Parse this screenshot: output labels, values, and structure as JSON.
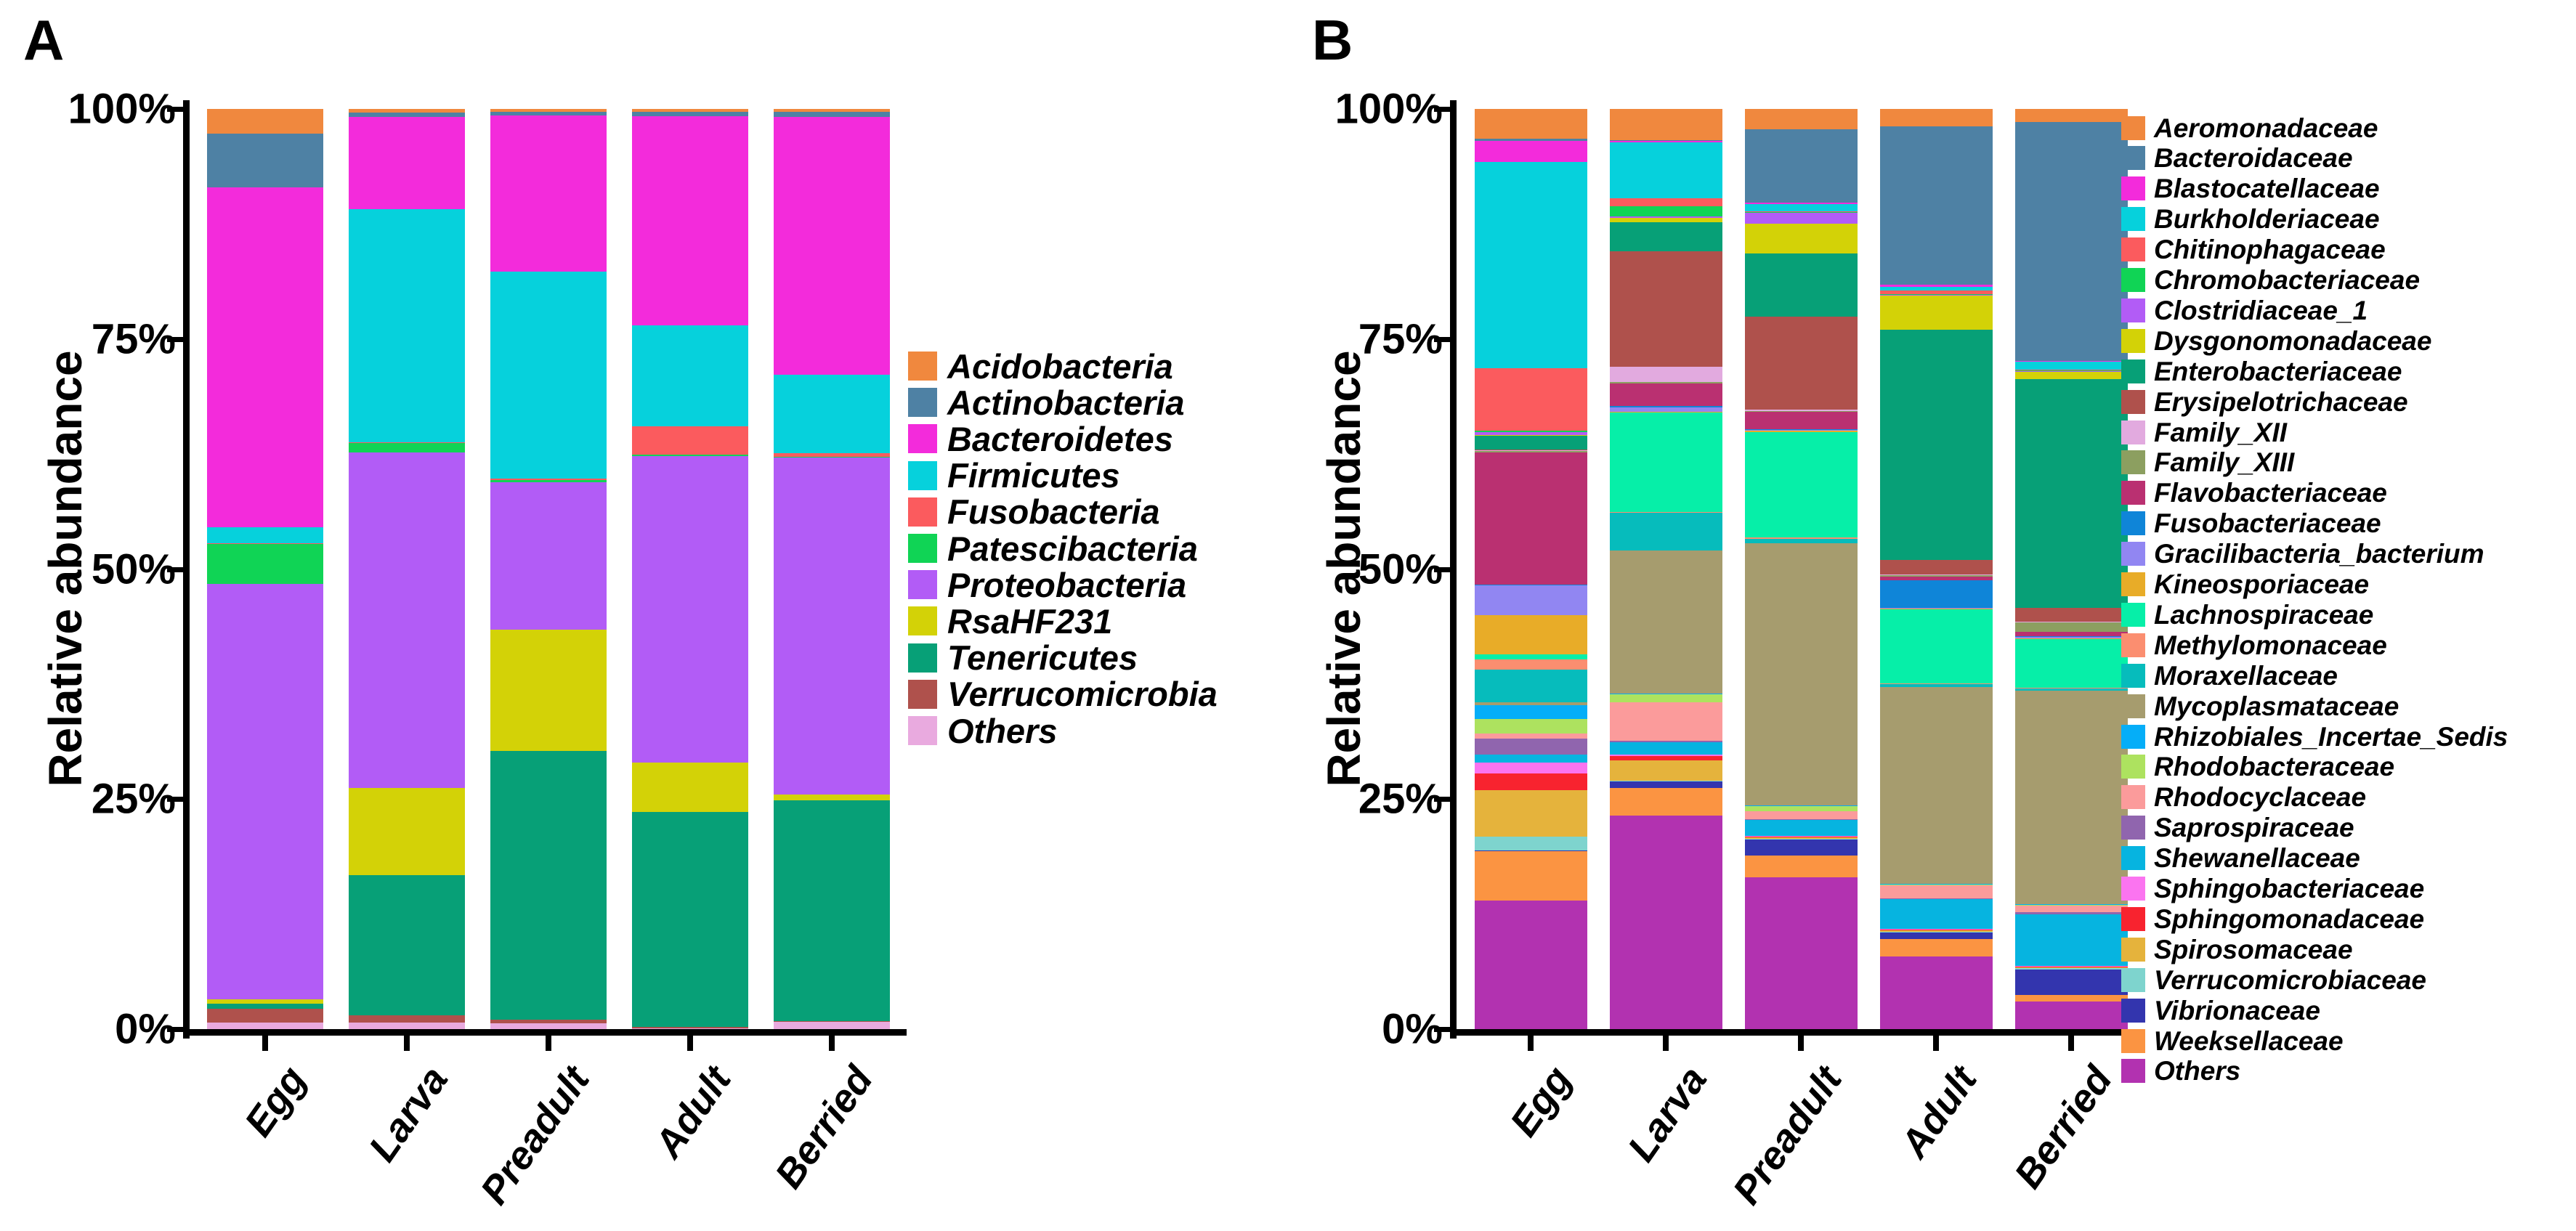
{
  "figure": {
    "panel_a_label": "A",
    "panel_b_label": "B",
    "y_axis_label": "Relative abundance"
  },
  "chart_data": [
    {
      "type": "bar",
      "subtype": "stacked-percent",
      "panel": "A",
      "title": "",
      "xlabel": "",
      "ylabel": "Relative abundance",
      "ylim": [
        0,
        100
      ],
      "yticks": [
        "100%",
        "75%",
        "50%",
        "25%",
        "0%"
      ],
      "categories": [
        "Egg",
        "Larva",
        "Preadult",
        "Adult",
        "Berried"
      ],
      "legend_position": "right",
      "series": [
        {
          "name": "Acidobacteria",
          "color": "#F0883E",
          "values": [
            2.7,
            0.4,
            0.3,
            0.3,
            0.3
          ]
        },
        {
          "name": "Actinobacteria",
          "color": "#4E81A4",
          "values": [
            5.8,
            0.5,
            0.4,
            0.5,
            0.6
          ]
        },
        {
          "name": "Bacteroidetes",
          "color": "#F32BDB",
          "values": [
            37.0,
            10.0,
            17.0,
            22.7,
            28.0
          ]
        },
        {
          "name": "Firmicutes",
          "color": "#06D1DC",
          "values": [
            1.7,
            25.3,
            22.5,
            11.0,
            8.5
          ]
        },
        {
          "name": "Fusobacteria",
          "color": "#FB5B5E",
          "values": [
            0.1,
            0.1,
            0.1,
            3.1,
            0.4
          ]
        },
        {
          "name": "Patescibacteria",
          "color": "#10D455",
          "values": [
            4.3,
            1.0,
            0.3,
            0.1,
            0.1
          ]
        },
        {
          "name": "Proteobacteria",
          "color": "#B25CF6",
          "values": [
            45.2,
            36.5,
            16.0,
            33.3,
            36.6
          ]
        },
        {
          "name": "RsaHF231",
          "color": "#D3D207",
          "values": [
            0.4,
            9.5,
            13.2,
            5.4,
            0.6
          ]
        },
        {
          "name": "Tenericutes",
          "color": "#07A077",
          "values": [
            0.6,
            15.2,
            29.2,
            23.4,
            24.0
          ]
        },
        {
          "name": "Verrucomicrobia",
          "color": "#AF514C",
          "values": [
            1.5,
            0.8,
            0.4,
            0.1,
            0.1
          ]
        },
        {
          "name": "Others",
          "color": "#E9AADF",
          "values": [
            0.7,
            0.7,
            0.6,
            0.1,
            0.8
          ]
        }
      ]
    },
    {
      "type": "bar",
      "subtype": "stacked-percent",
      "panel": "B",
      "title": "",
      "xlabel": "",
      "ylabel": "Relative abundance",
      "ylim": [
        0,
        100
      ],
      "yticks": [
        "100%",
        "75%",
        "50%",
        "25%",
        "0%"
      ],
      "categories": [
        "Egg",
        "Larva",
        "Preadult",
        "Adult",
        "Berried"
      ],
      "legend_position": "right",
      "series": [
        {
          "name": "Aeromonadaceae",
          "color": "#F0883E",
          "values": [
            3.2,
            3.4,
            2.2,
            1.9,
            1.4
          ]
        },
        {
          "name": "Bacteroidaceae",
          "color": "#4E81A4",
          "values": [
            0.3,
            0.1,
            8.0,
            17.2,
            26.0
          ]
        },
        {
          "name": "Blastocatellaceae",
          "color": "#F32BDB",
          "values": [
            2.3,
            0.1,
            0.1,
            0.2,
            0.1
          ]
        },
        {
          "name": "Burkholderiaceae",
          "color": "#06D1DC",
          "values": [
            22.4,
            6.1,
            0.8,
            0.4,
            0.8
          ]
        },
        {
          "name": "Chitinophagaceae",
          "color": "#FB5B5E",
          "values": [
            6.8,
            0.9,
            0.1,
            0.4,
            0.1
          ]
        },
        {
          "name": "Chromobacteriaceae",
          "color": "#10D455",
          "values": [
            0.1,
            1.1,
            0.1,
            0.1,
            0.1
          ]
        },
        {
          "name": "Clostridiaceae_1",
          "color": "#B25CF6",
          "values": [
            0.3,
            0.1,
            1.2,
            0.1,
            0.1
          ]
        },
        {
          "name": "Dysgonomonadaceae",
          "color": "#D3D207",
          "values": [
            0.1,
            0.5,
            3.2,
            3.7,
            0.8
          ]
        },
        {
          "name": "Enterobacteriaceae",
          "color": "#07A077",
          "values": [
            1.5,
            3.2,
            6.9,
            25.0,
            24.8
          ]
        },
        {
          "name": "Erysipelotrichaceae",
          "color": "#AF514C",
          "values": [
            0.1,
            12.5,
            10.1,
            1.6,
            1.5
          ]
        },
        {
          "name": "Family_XII",
          "color": "#E2AADF",
          "values": [
            0.1,
            1.7,
            0.1,
            0.1,
            0.1
          ]
        },
        {
          "name": "Family_XIII",
          "color": "#8C9F60",
          "values": [
            0.1,
            0.1,
            0.1,
            0.1,
            1.0
          ]
        },
        {
          "name": "Flavobacteriaceae",
          "color": "#BA3071",
          "values": [
            14.4,
            2.5,
            1.9,
            0.4,
            0.5
          ]
        },
        {
          "name": "Fusobacteriaceae",
          "color": "#0F85D8",
          "values": [
            0.1,
            0.1,
            0.1,
            3.0,
            0.1
          ]
        },
        {
          "name": "Gracilibacteria_bacterium",
          "color": "#9186F2",
          "values": [
            3.2,
            0.5,
            0.1,
            0.1,
            0.1
          ]
        },
        {
          "name": "Kineosporiaceae",
          "color": "#E8AC28",
          "values": [
            4.3,
            0.1,
            0.1,
            0.1,
            0.1
          ]
        },
        {
          "name": "Lachnospiraceae",
          "color": "#06EFA8",
          "values": [
            0.5,
            10.8,
            11.5,
            8.0,
            5.3
          ]
        },
        {
          "name": "Methylomonaceae",
          "color": "#FB8E70",
          "values": [
            1.1,
            0.1,
            0.1,
            0.1,
            0.1
          ]
        },
        {
          "name": "Moraxellaceae",
          "color": "#06BCBC",
          "values": [
            3.6,
            4.1,
            0.5,
            0.3,
            0.2
          ]
        },
        {
          "name": "Mycoplasmataceae",
          "color": "#A69C6E",
          "values": [
            0.3,
            15.5,
            28.5,
            21.4,
            23.2
          ]
        },
        {
          "name": "Rhizobiales_Incertae_Sedis",
          "color": "#05AEF8",
          "values": [
            1.5,
            0.1,
            0.1,
            0.1,
            0.1
          ]
        },
        {
          "name": "Rhodobacteraceae",
          "color": "#ADE25F",
          "values": [
            1.6,
            0.9,
            0.5,
            0.1,
            0.1
          ]
        },
        {
          "name": "Rhodocyclaceae",
          "color": "#FB9B9B",
          "values": [
            0.5,
            4.2,
            0.9,
            1.4,
            0.7
          ]
        },
        {
          "name": "Saprospiraceae",
          "color": "#9065AE",
          "values": [
            1.8,
            0.1,
            0.1,
            0.1,
            0.2
          ]
        },
        {
          "name": "Shewanellaceae",
          "color": "#06B4E0",
          "values": [
            0.8,
            1.4,
            1.7,
            3.2,
            5.6
          ]
        },
        {
          "name": "Sphingobacteriaceae",
          "color": "#FB74F0",
          "values": [
            1.2,
            0.1,
            0.1,
            0.1,
            0.1
          ]
        },
        {
          "name": "Sphingomonadaceae",
          "color": "#F8232F",
          "values": [
            1.8,
            0.5,
            0.1,
            0.1,
            0.1
          ]
        },
        {
          "name": "Spirosomaceae",
          "color": "#E5B33C",
          "values": [
            5.1,
            2.2,
            0.1,
            0.1,
            0.1
          ]
        },
        {
          "name": "Verrucomicrobiaceae",
          "color": "#7ED4CE",
          "values": [
            1.5,
            0.1,
            0.1,
            0.1,
            0.1
          ]
        },
        {
          "name": "Vibrionaceae",
          "color": "#3335AE",
          "values": [
            0.1,
            0.7,
            1.7,
            0.7,
            2.8
          ]
        },
        {
          "name": "Weeksellaceae",
          "color": "#FB9442",
          "values": [
            5.3,
            3.0,
            2.4,
            1.9,
            0.7
          ]
        },
        {
          "name": "Others",
          "color": "#B232B0",
          "values": [
            14.0,
            23.2,
            16.5,
            7.9,
            3.0
          ]
        }
      ]
    }
  ]
}
